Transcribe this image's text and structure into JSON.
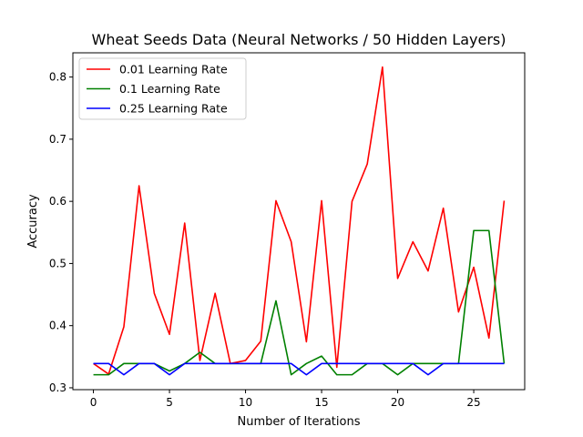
{
  "chart_data": {
    "type": "line",
    "title": "Wheat Seeds Data (Neural Networks / 50 Hidden Layers)",
    "xlabel": "Number of Iterations",
    "ylabel": "Accuracy",
    "xlim": [
      -1.35,
      28.35
    ],
    "ylim": [
      0.297,
      0.839
    ],
    "xticks": [
      0,
      5,
      10,
      15,
      20,
      25
    ],
    "xtick_labels": [
      "0",
      "5",
      "10",
      "15",
      "20",
      "25"
    ],
    "yticks": [
      0.3,
      0.4,
      0.5,
      0.6,
      0.7,
      0.8
    ],
    "ytick_labels": [
      "0.3",
      "0.4",
      "0.5",
      "0.6",
      "0.7",
      "0.8"
    ],
    "legend_position": "top-left",
    "grid": false,
    "x": [
      0,
      1,
      2,
      3,
      4,
      5,
      6,
      7,
      8,
      9,
      10,
      11,
      12,
      13,
      14,
      15,
      16,
      17,
      18,
      19,
      20,
      21,
      22,
      23,
      24,
      25,
      26,
      27
    ],
    "series": [
      {
        "name": "0.01 Learning Rate",
        "color": "#ff0000",
        "values": [
          0.339,
          0.322,
          0.398,
          0.625,
          0.452,
          0.386,
          0.565,
          0.344,
          0.452,
          0.339,
          0.344,
          0.375,
          0.601,
          0.535,
          0.374,
          0.601,
          0.333,
          0.6,
          0.66,
          0.816,
          0.476,
          0.535,
          0.488,
          0.589,
          0.422,
          0.494,
          0.38,
          0.601
        ]
      },
      {
        "name": "0.1 Learning Rate",
        "color": "#008000",
        "values": [
          0.321,
          0.321,
          0.339,
          0.339,
          0.339,
          0.327,
          0.339,
          0.357,
          0.339,
          0.339,
          0.339,
          0.339,
          0.44,
          0.321,
          0.339,
          0.351,
          0.321,
          0.321,
          0.339,
          0.339,
          0.321,
          0.339,
          0.339,
          0.339,
          0.339,
          0.553,
          0.553,
          0.339
        ]
      },
      {
        "name": "0.25 Learning Rate",
        "color": "#0000ff",
        "values": [
          0.339,
          0.339,
          0.321,
          0.339,
          0.339,
          0.321,
          0.339,
          0.339,
          0.339,
          0.339,
          0.339,
          0.339,
          0.339,
          0.339,
          0.321,
          0.339,
          0.339,
          0.339,
          0.339,
          0.339,
          0.339,
          0.339,
          0.321,
          0.339,
          0.339,
          0.339,
          0.339,
          0.339
        ]
      }
    ]
  }
}
